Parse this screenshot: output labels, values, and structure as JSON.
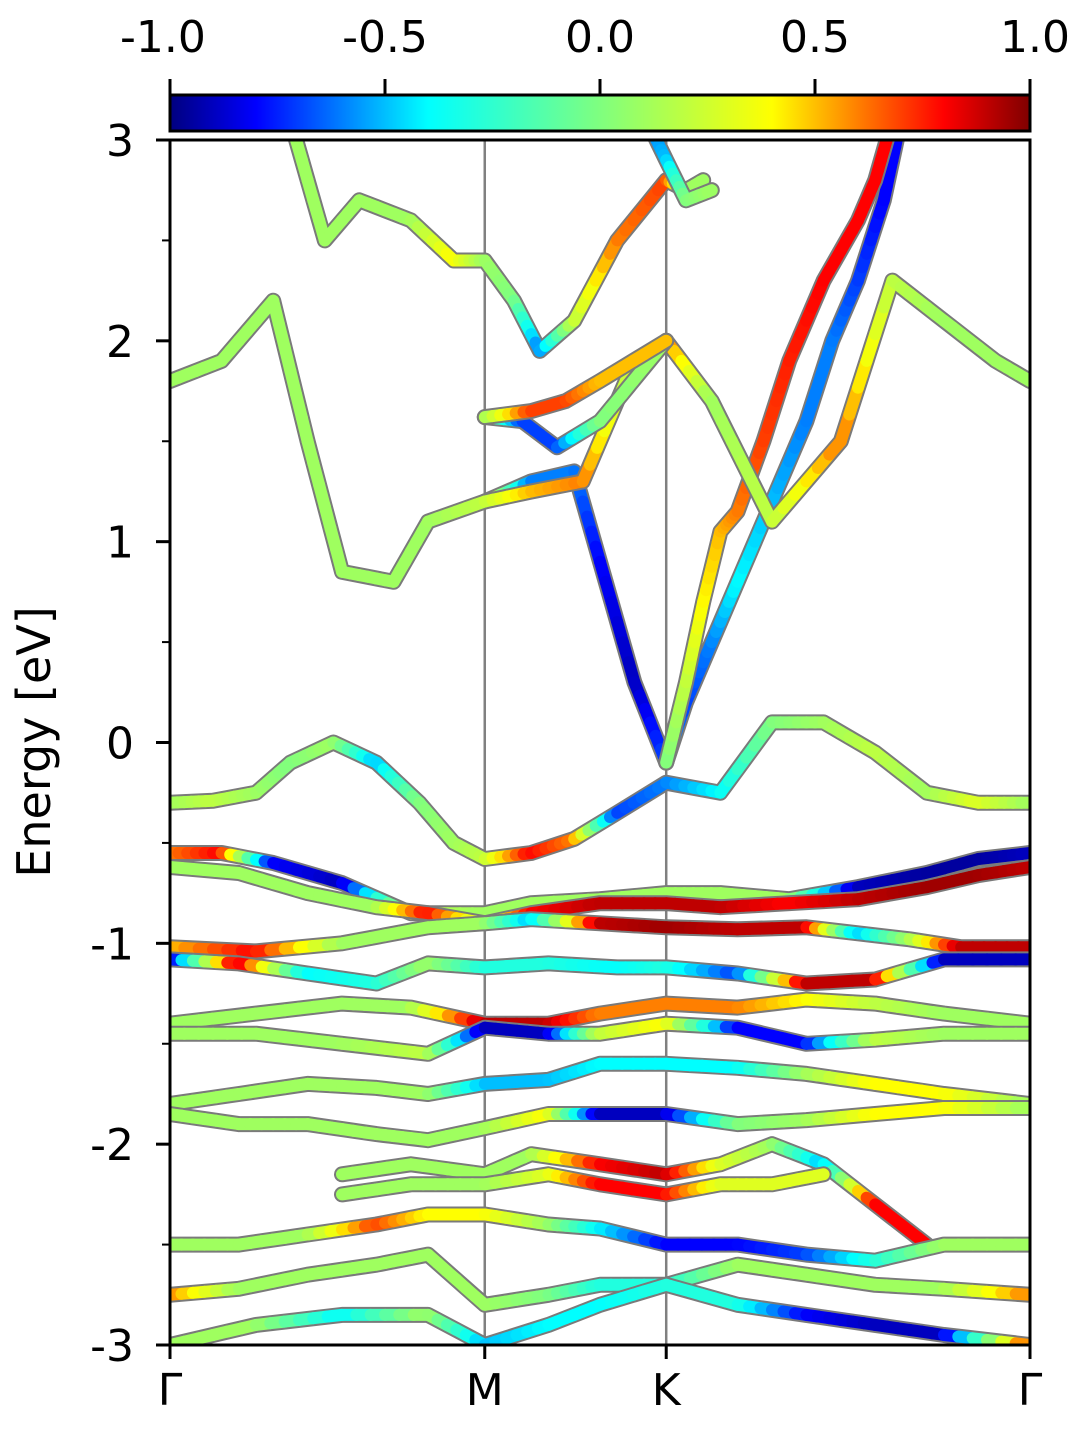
{
  "chart_data": {
    "type": "line",
    "title": "",
    "ylabel": "Energy [eV]",
    "xlabel": "",
    "ylim": [
      -3,
      3
    ],
    "yticks": [
      {
        "value": 3,
        "label": "3"
      },
      {
        "value": 2,
        "label": "2"
      },
      {
        "value": 1,
        "label": "1"
      },
      {
        "value": 0,
        "label": "0"
      },
      {
        "value": -1,
        "label": "-1"
      },
      {
        "value": -2,
        "label": "-2"
      },
      {
        "value": -3,
        "label": "-3"
      }
    ],
    "y_minor_ticks": [
      2.5,
      1.5,
      0.5,
      -0.5,
      -1.5,
      -2.5
    ],
    "kpath": [
      {
        "label": "Γ",
        "pos": 0.0
      },
      {
        "label": "M",
        "pos": 0.366
      },
      {
        "label": "K",
        "pos": 0.577
      },
      {
        "label": "Γ",
        "pos": 1.0
      }
    ],
    "colorbar": {
      "colormap": "jet",
      "range": [
        -1.0,
        1.0
      ],
      "ticks": [
        {
          "value": -1.0,
          "label": "-1.0"
        },
        {
          "value": -0.5,
          "label": "-0.5"
        },
        {
          "value": 0.0,
          "label": "0.0"
        },
        {
          "value": 0.5,
          "label": "0.5"
        },
        {
          "value": 1.0,
          "label": "1.0"
        }
      ],
      "colors": [
        "#00007f",
        "#0000ff",
        "#007fff",
        "#00ffff",
        "#3fffbf",
        "#7fff7f",
        "#bfff3f",
        "#ffff00",
        "#ff7f00",
        "#ff0000",
        "#7f0000"
      ]
    },
    "bands": [
      {
        "x": [
          0,
          0.05,
          0.1,
          0.14,
          0.19,
          0.24,
          0.29,
          0.33,
          0.366,
          0.42,
          0.47,
          0.52,
          0.577,
          0.64,
          0.7,
          0.76,
          0.82,
          0.88,
          0.94,
          1.0
        ],
        "y": [
          -0.3,
          -0.29,
          -0.25,
          -0.1,
          0.0,
          -0.1,
          -0.3,
          -0.5,
          -0.58,
          -0.55,
          -0.48,
          -0.35,
          -0.2,
          -0.25,
          0.1,
          0.1,
          -0.05,
          -0.25,
          -0.3,
          -0.3
        ],
        "c": [
          0.1,
          0.2,
          0.1,
          0.0,
          0.1,
          -0.5,
          0.0,
          0.1,
          0.2,
          0.8,
          0.6,
          -0.7,
          -0.6,
          -0.4,
          0.0,
          0.1,
          0.2,
          0.1,
          0.3,
          0.1
        ]
      },
      {
        "x": [
          0.366,
          0.42,
          0.47,
          0.5,
          0.54,
          0.577
        ],
        "y": [
          1.2,
          1.3,
          1.35,
          0.9,
          0.3,
          -0.1
        ],
        "c": [
          0.4,
          -0.6,
          -0.6,
          -0.8,
          -0.9,
          -0.7
        ]
      },
      {
        "x": [
          0.577,
          0.6,
          0.63,
          0.66,
          0.7,
          0.74,
          0.77,
          0.8,
          0.83,
          0.85
        ],
        "y": [
          -0.1,
          0.2,
          0.5,
          0.8,
          1.2,
          1.6,
          2.0,
          2.3,
          2.7,
          3.1
        ],
        "c": [
          -0.5,
          -0.7,
          -0.6,
          -0.4,
          -0.5,
          -0.6,
          -0.6,
          -0.7,
          -0.8,
          -0.8
        ]
      },
      {
        "x": [
          0.577,
          0.6,
          0.62,
          0.64,
          0.66,
          0.69,
          0.72,
          0.76,
          0.8,
          0.82,
          0.84
        ],
        "y": [
          -0.1,
          0.3,
          0.7,
          1.05,
          1.15,
          1.5,
          1.9,
          2.3,
          2.6,
          2.8,
          3.1
        ],
        "c": [
          0.0,
          0.2,
          0.4,
          0.5,
          0.6,
          0.7,
          0.75,
          0.8,
          0.8,
          0.8,
          0.8
        ]
      },
      {
        "x": [
          0,
          0.06,
          0.12,
          0.16,
          0.2,
          0.26,
          0.3,
          0.366,
          0.42,
          0.48,
          0.53,
          0.577,
          0.63,
          0.7,
          0.78,
          0.84,
          0.9,
          0.96,
          1.0
        ],
        "y": [
          1.8,
          1.9,
          2.2,
          1.5,
          0.85,
          0.8,
          1.1,
          1.2,
          1.25,
          1.3,
          1.8,
          2.0,
          1.7,
          1.1,
          1.5,
          2.3,
          2.1,
          1.9,
          1.8
        ],
        "c": [
          0.1,
          0.1,
          0.1,
          0.1,
          0.1,
          0.1,
          0.1,
          0.2,
          0.5,
          0.6,
          0.2,
          0.6,
          0.1,
          0.2,
          0.6,
          0.2,
          0.1,
          0.1,
          0.1
        ]
      },
      {
        "x": [
          0.14,
          0.18,
          0.22,
          0.28,
          0.33,
          0.366,
          0.4,
          0.43,
          0.47,
          0.52,
          0.577,
          0.6,
          0.62
        ],
        "y": [
          3.1,
          2.5,
          2.7,
          2.6,
          2.4,
          2.4,
          2.2,
          1.95,
          2.1,
          2.5,
          2.8,
          2.75,
          2.8
        ],
        "c": [
          0.1,
          0.1,
          0.1,
          0.1,
          0.4,
          0.1,
          0.0,
          -0.6,
          0.2,
          0.6,
          0.7,
          0.1,
          0.1
        ]
      },
      {
        "x": [
          0.366,
          0.41,
          0.45,
          0.5,
          0.577
        ],
        "y": [
          1.62,
          1.6,
          1.47,
          1.6,
          2.0
        ],
        "c": [
          0.1,
          -0.7,
          -0.7,
          0.0,
          0.1
        ]
      },
      {
        "x": [
          0.366,
          0.42,
          0.46,
          0.5,
          0.577
        ],
        "y": [
          1.62,
          1.65,
          1.7,
          1.8,
          2.0
        ],
        "c": [
          0.1,
          0.7,
          0.7,
          0.5,
          0.5
        ]
      },
      {
        "x": [
          0.56,
          0.577,
          0.6,
          0.63
        ],
        "y": [
          3.05,
          2.9,
          2.7,
          2.75
        ],
        "c": [
          -0.6,
          -0.5,
          0.0,
          0.1
        ]
      },
      {
        "x": [
          0,
          0.06,
          0.12,
          0.2,
          0.28,
          0.366,
          0.42,
          0.5,
          0.577,
          0.64,
          0.72,
          0.8,
          0.88,
          0.94,
          1.0
        ],
        "y": [
          -0.55,
          -0.55,
          -0.6,
          -0.7,
          -0.85,
          -0.85,
          -0.8,
          -0.78,
          -0.75,
          -0.75,
          -0.78,
          -0.72,
          -0.65,
          -0.58,
          -0.55
        ],
        "c": [
          0.6,
          0.8,
          -0.8,
          -0.9,
          0.2,
          0.1,
          0.1,
          0.1,
          0.1,
          0.1,
          0.1,
          -0.9,
          -0.95,
          -0.95,
          -0.9
        ]
      },
      {
        "x": [
          0,
          0.08,
          0.16,
          0.24,
          0.3,
          0.366,
          0.42,
          0.5,
          0.577,
          0.64,
          0.72,
          0.8,
          0.88,
          0.94,
          1.0
        ],
        "y": [
          -0.62,
          -0.65,
          -0.75,
          -0.82,
          -0.85,
          -0.9,
          -0.85,
          -0.8,
          -0.8,
          -0.82,
          -0.8,
          -0.78,
          -0.72,
          -0.66,
          -0.62
        ],
        "c": [
          0.1,
          0.1,
          0.1,
          0.1,
          0.8,
          0.2,
          0.8,
          0.9,
          0.9,
          0.9,
          0.8,
          0.9,
          0.95,
          0.95,
          0.9
        ]
      },
      {
        "x": [
          0,
          0.1,
          0.2,
          0.3,
          0.366,
          0.42,
          0.5,
          0.577,
          0.66,
          0.74,
          0.8,
          0.86,
          0.92,
          1.0
        ],
        "y": [
          -1.02,
          -1.04,
          -1.0,
          -0.92,
          -0.9,
          -0.88,
          -0.9,
          -0.92,
          -0.93,
          -0.92,
          -0.95,
          -0.98,
          -1.02,
          -1.02
        ],
        "c": [
          0.5,
          0.8,
          0.1,
          0.1,
          0.1,
          -0.5,
          0.9,
          0.95,
          0.9,
          0.9,
          -0.5,
          0.1,
          0.9,
          0.9
        ]
      },
      {
        "x": [
          0,
          0.08,
          0.16,
          0.24,
          0.3,
          0.366,
          0.44,
          0.52,
          0.577,
          0.66,
          0.74,
          0.82,
          0.9,
          1.0
        ],
        "y": [
          -1.08,
          -1.1,
          -1.15,
          -1.2,
          -1.1,
          -1.12,
          -1.1,
          -1.12,
          -1.12,
          -1.15,
          -1.2,
          -1.18,
          -1.08,
          -1.08
        ],
        "c": [
          -0.9,
          0.9,
          -0.4,
          -0.3,
          0.1,
          -0.3,
          -0.3,
          -0.4,
          -0.3,
          -0.7,
          0.9,
          0.9,
          -0.9,
          -0.9
        ]
      },
      {
        "x": [
          0,
          0.1,
          0.2,
          0.28,
          0.366,
          0.44,
          0.5,
          0.577,
          0.66,
          0.74,
          0.82,
          0.9,
          1.0
        ],
        "y": [
          -1.4,
          -1.35,
          -1.3,
          -1.32,
          -1.4,
          -1.4,
          -1.35,
          -1.3,
          -1.32,
          -1.28,
          -1.3,
          -1.35,
          -1.4
        ],
        "c": [
          0.1,
          0.1,
          0.1,
          0.1,
          0.9,
          0.9,
          0.6,
          0.6,
          0.6,
          0.4,
          0.2,
          0.1,
          0.1
        ]
      },
      {
        "x": [
          0,
          0.1,
          0.2,
          0.3,
          0.366,
          0.44,
          0.5,
          0.577,
          0.66,
          0.74,
          0.82,
          0.9,
          1.0
        ],
        "y": [
          -1.45,
          -1.45,
          -1.5,
          -1.55,
          -1.42,
          -1.45,
          -1.45,
          -1.4,
          -1.42,
          -1.5,
          -1.48,
          -1.45,
          -1.45
        ],
        "c": [
          0.1,
          0.1,
          0.1,
          0.2,
          -0.9,
          -0.9,
          0.2,
          0.4,
          -0.8,
          -0.8,
          0.2,
          0.1,
          0.1
        ]
      },
      {
        "x": [
          0,
          0.08,
          0.16,
          0.24,
          0.3,
          0.366,
          0.44,
          0.5,
          0.577,
          0.66,
          0.74,
          0.82,
          0.9,
          1.0
        ],
        "y": [
          -1.8,
          -1.75,
          -1.7,
          -1.72,
          -1.75,
          -1.7,
          -1.68,
          -1.6,
          -1.6,
          -1.62,
          -1.65,
          -1.7,
          -1.75,
          -1.8
        ],
        "c": [
          0.1,
          0.1,
          0.1,
          0.1,
          0.1,
          -0.5,
          -0.5,
          -0.4,
          -0.4,
          -0.4,
          0.1,
          0.4,
          0.4,
          0.1
        ]
      },
      {
        "x": [
          0,
          0.08,
          0.16,
          0.24,
          0.3,
          0.366,
          0.44,
          0.5,
          0.577,
          0.66,
          0.74,
          0.82,
          0.9,
          1.0
        ],
        "y": [
          -1.85,
          -1.9,
          -1.9,
          -1.95,
          -1.98,
          -1.92,
          -1.85,
          -1.85,
          -1.85,
          -1.9,
          -1.88,
          -1.85,
          -1.82,
          -1.82
        ],
        "c": [
          0.1,
          0.1,
          0.1,
          0.1,
          0.1,
          0.1,
          0.4,
          -0.9,
          -0.9,
          0.0,
          0.1,
          0.4,
          0.4,
          0.1
        ]
      },
      {
        "x": [
          0.2,
          0.28,
          0.366,
          0.42,
          0.5,
          0.577,
          0.64,
          0.7,
          0.76,
          0.82,
          0.88
        ],
        "y": [
          -2.15,
          -2.1,
          -2.15,
          -2.05,
          -2.1,
          -2.15,
          -2.1,
          -2.0,
          -2.1,
          -2.3,
          -2.5
        ],
        "c": [
          0.1,
          0.1,
          0.1,
          0.1,
          0.8,
          0.9,
          0.3,
          0.1,
          -0.5,
          0.8,
          0.8
        ]
      },
      {
        "x": [
          0.2,
          0.28,
          0.366,
          0.44,
          0.5,
          0.577,
          0.64,
          0.7,
          0.76
        ],
        "y": [
          -2.25,
          -2.2,
          -2.2,
          -2.15,
          -2.2,
          -2.25,
          -2.2,
          -2.2,
          -2.15
        ],
        "c": [
          0.1,
          0.1,
          0.1,
          0.3,
          0.8,
          0.8,
          0.3,
          0.3,
          0.3
        ]
      },
      {
        "x": [
          0,
          0.08,
          0.16,
          0.24,
          0.3,
          0.366,
          0.44,
          0.5,
          0.577,
          0.66,
          0.74,
          0.82,
          0.9,
          1.0
        ],
        "y": [
          -2.5,
          -2.5,
          -2.45,
          -2.4,
          -2.35,
          -2.35,
          -2.4,
          -2.42,
          -2.5,
          -2.5,
          -2.55,
          -2.58,
          -2.5,
          -2.5
        ],
        "c": [
          0.1,
          0.1,
          0.1,
          0.7,
          0.4,
          0.4,
          0.1,
          -0.4,
          -0.8,
          -0.8,
          -0.7,
          -0.3,
          0.1,
          0.1
        ]
      },
      {
        "x": [
          0,
          0.08,
          0.16,
          0.24,
          0.3,
          0.366,
          0.44,
          0.5,
          0.577,
          0.66,
          0.74,
          0.82,
          0.9,
          1.0
        ],
        "y": [
          -2.75,
          -2.72,
          -2.65,
          -2.6,
          -2.55,
          -2.8,
          -2.75,
          -2.7,
          -2.7,
          -2.6,
          -2.65,
          -2.7,
          -2.72,
          -2.75
        ],
        "c": [
          0.6,
          0.1,
          0.1,
          0.1,
          0.1,
          0.1,
          0.0,
          -0.3,
          -0.3,
          0.1,
          0.1,
          0.1,
          0.1,
          0.6
        ]
      },
      {
        "x": [
          0,
          0.1,
          0.2,
          0.3,
          0.366,
          0.44,
          0.5,
          0.577,
          0.66,
          0.74,
          0.82,
          0.9,
          1.0
        ],
        "y": [
          -3.0,
          -2.9,
          -2.85,
          -2.85,
          -3.0,
          -2.9,
          -2.8,
          -2.7,
          -2.8,
          -2.85,
          -2.9,
          -2.95,
          -3.0
        ],
        "c": [
          0.1,
          0.1,
          -0.4,
          0.1,
          -0.5,
          -0.4,
          -0.4,
          -0.3,
          -0.3,
          -0.8,
          -0.9,
          -0.9,
          0.7
        ]
      }
    ]
  }
}
